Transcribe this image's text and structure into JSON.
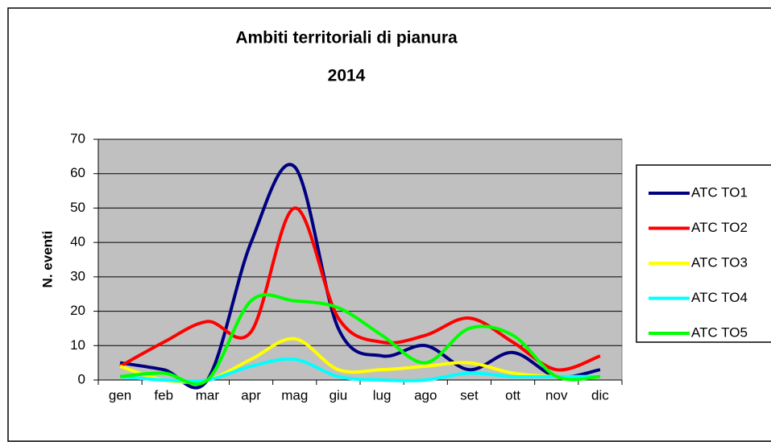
{
  "chart_data": {
    "type": "line",
    "title": "Ambiti territoriali di pianura",
    "subtitle": "2014",
    "y_label": "N. eventi",
    "categories": [
      "gen",
      "feb",
      "mar",
      "apr",
      "mag",
      "giu",
      "lug",
      "ago",
      "set",
      "ott",
      "nov",
      "dic"
    ],
    "series": [
      {
        "name": "ATC TO1",
        "color": "#000080",
        "values": [
          5,
          3,
          0,
          40,
          62,
          15,
          7,
          10,
          3,
          8,
          1,
          3
        ]
      },
      {
        "name": "ATC TO2",
        "color": "#ff0000",
        "values": [
          4,
          11,
          17,
          14,
          50,
          18,
          11,
          13,
          18,
          11,
          3,
          7
        ]
      },
      {
        "name": "ATC TO3",
        "color": "#ffff00",
        "values": [
          4,
          0,
          0,
          6,
          12,
          3,
          3,
          4,
          5,
          2,
          1,
          1
        ]
      },
      {
        "name": "ATC TO4",
        "color": "#00ffff",
        "values": [
          1,
          0,
          0,
          4,
          6,
          1,
          0,
          0,
          2,
          1,
          1,
          1
        ]
      },
      {
        "name": "ATC TO5",
        "color": "#00ff00",
        "values": [
          1,
          2,
          0,
          23,
          23,
          21,
          13,
          5,
          15,
          13,
          1,
          1
        ]
      }
    ],
    "ylim": [
      0,
      70
    ],
    "yticks": [
      0,
      10,
      20,
      30,
      40,
      50,
      60,
      70
    ],
    "grid": true,
    "legend": "right",
    "plot_background": "#c0c0c0"
  }
}
